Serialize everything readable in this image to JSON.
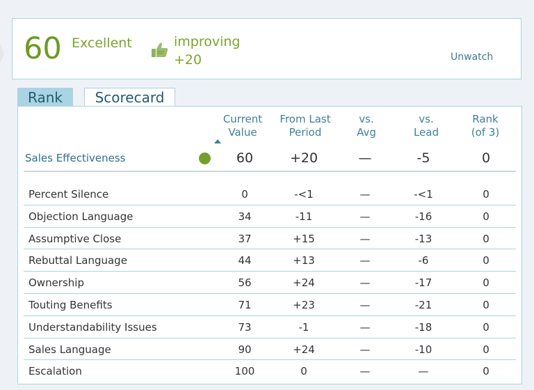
{
  "summary": {
    "score": "60",
    "rating": "Excellent",
    "trend_label": "improving",
    "trend_value": "+20",
    "unwatch_label": "Unwatch"
  },
  "tabs": [
    {
      "label": "Rank",
      "active": true
    },
    {
      "label": "Scorecard",
      "active": false
    }
  ],
  "table": {
    "headers": [
      {
        "line1": "Current",
        "line2": "Value",
        "sorted": "ascending"
      },
      {
        "line1": "From Last",
        "line2": "Period"
      },
      {
        "line1": "vs.",
        "line2": "Avg"
      },
      {
        "line1": "vs.",
        "line2": "Lead"
      },
      {
        "line1": "Rank",
        "line2": "(of 3)"
      }
    ],
    "main": {
      "name": "Sales Effectiveness",
      "status_color": "#72a02c",
      "current": "60",
      "from_last": "+20",
      "vs_avg": "—",
      "vs_lead": "-5",
      "rank": "0"
    },
    "rows": [
      {
        "name": "Percent Silence",
        "current": "0",
        "from_last": "-<1",
        "vs_avg": "—",
        "vs_lead": "-<1",
        "rank": "0"
      },
      {
        "name": "Objection Language",
        "current": "34",
        "from_last": "-11",
        "vs_avg": "—",
        "vs_lead": "-16",
        "rank": "0"
      },
      {
        "name": "Assumptive Close",
        "current": "37",
        "from_last": "+15",
        "vs_avg": "—",
        "vs_lead": "-13",
        "rank": "0"
      },
      {
        "name": "Rebuttal Language",
        "current": "44",
        "from_last": "+13",
        "vs_avg": "—",
        "vs_lead": "-6",
        "rank": "0"
      },
      {
        "name": "Ownership",
        "current": "56",
        "from_last": "+24",
        "vs_avg": "—",
        "vs_lead": "-17",
        "rank": "0"
      },
      {
        "name": "Touting Benefits",
        "current": "71",
        "from_last": "+23",
        "vs_avg": "—",
        "vs_lead": "-21",
        "rank": "0"
      },
      {
        "name": "Understandability Issues",
        "current": "73",
        "from_last": "-1",
        "vs_avg": "—",
        "vs_lead": "-18",
        "rank": "0"
      },
      {
        "name": "Sales Language",
        "current": "90",
        "from_last": "+24",
        "vs_avg": "—",
        "vs_lead": "-10",
        "rank": "0"
      },
      {
        "name": "Escalation",
        "current": "100",
        "from_last": "0",
        "vs_avg": "—",
        "vs_lead": "—",
        "rank": "0"
      }
    ]
  },
  "colors": {
    "accent_green": "#72a02c",
    "border_blue": "#a9d4e2",
    "header_blue": "#3f8099"
  },
  "icons": {
    "trend": "thumbs-up-icon"
  }
}
